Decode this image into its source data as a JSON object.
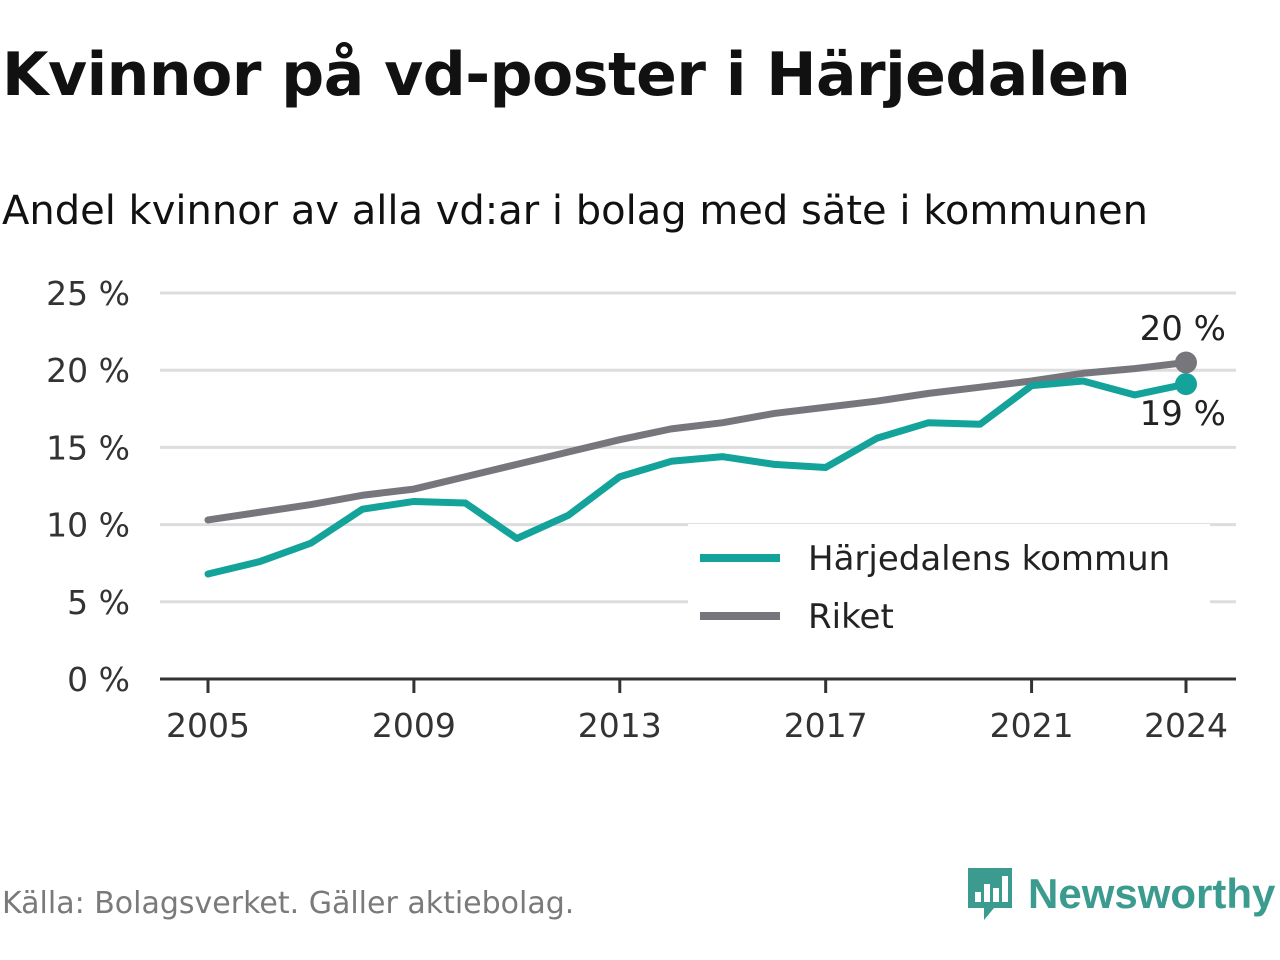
{
  "header": {
    "title": "Kvinnor på vd-poster i Härjedalen",
    "subtitle": "Andel kvinnor av alla vd:ar i bolag med säte i kommunen"
  },
  "footer": {
    "source": "Källa: Bolagsverket. Gäller aktiebolag.",
    "brand": "Newsworthy"
  },
  "colors": {
    "kommun": "#14a39a",
    "riket": "#77767d",
    "grid": "#dddddd",
    "axis": "#333333",
    "brand": "#3a9b8e"
  },
  "chart_data": {
    "type": "line",
    "title": "Kvinnor på vd-poster i Härjedalen",
    "subtitle": "Andel kvinnor av alla vd:ar i bolag med säte i kommunen",
    "xlabel": "",
    "ylabel": "",
    "x": [
      2005,
      2006,
      2007,
      2008,
      2009,
      2010,
      2011,
      2012,
      2013,
      2014,
      2015,
      2016,
      2017,
      2018,
      2019,
      2020,
      2021,
      2022,
      2023,
      2024
    ],
    "xlim": [
      2005,
      2024
    ],
    "xticks": [
      2005,
      2009,
      2013,
      2017,
      2021,
      2024
    ],
    "xtick_labels": [
      "2005",
      "2009",
      "2013",
      "2017",
      "2021",
      "2024"
    ],
    "ylim": [
      0,
      25
    ],
    "yticks": [
      0,
      5,
      10,
      15,
      20,
      25
    ],
    "ytick_labels": [
      "0 %",
      "5 %",
      "10 %",
      "15 %",
      "20 %",
      "25 %"
    ],
    "grid": true,
    "legend_position": "bottom-right",
    "series": [
      {
        "name": "Härjedalens kommun",
        "key": "kommun",
        "values": [
          6.8,
          7.6,
          8.8,
          11.0,
          11.5,
          11.4,
          9.1,
          10.6,
          13.1,
          14.1,
          14.4,
          13.9,
          13.7,
          15.6,
          16.6,
          16.5,
          19.0,
          19.3,
          18.4,
          19.1
        ],
        "end_label": "19 %"
      },
      {
        "name": "Riket",
        "key": "riket",
        "values": [
          10.3,
          10.8,
          11.3,
          11.9,
          12.3,
          13.1,
          13.9,
          14.7,
          15.5,
          16.2,
          16.6,
          17.2,
          17.6,
          18.0,
          18.5,
          18.9,
          19.3,
          19.8,
          20.1,
          20.5
        ],
        "end_label": "20 %"
      }
    ]
  }
}
